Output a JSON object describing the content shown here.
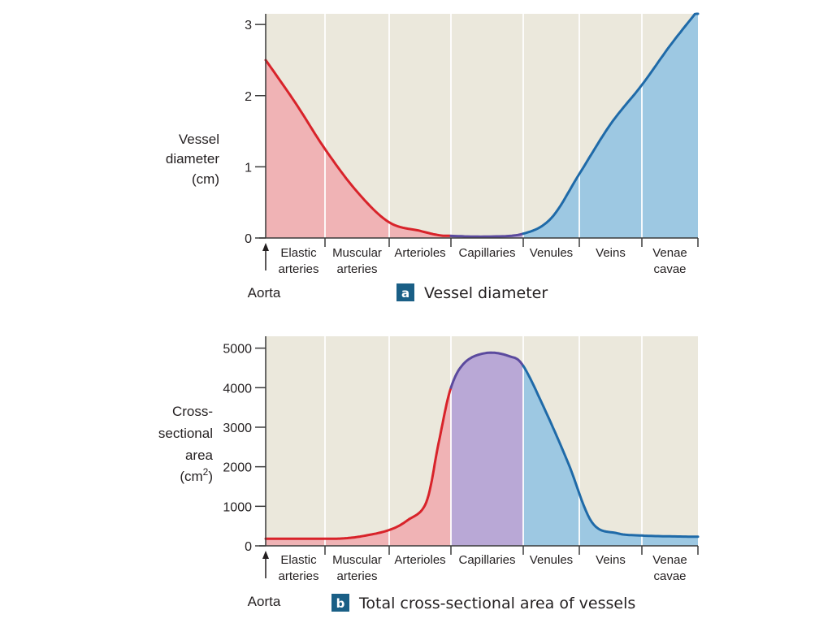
{
  "categories": [
    "Elastic arteries",
    "Muscular arteries",
    "Arterioles",
    "Capillaries",
    "Venules",
    "Veins",
    "Venae cavae"
  ],
  "category_lines": [
    [
      "Elastic",
      "arteries"
    ],
    [
      "Muscular",
      "arteries"
    ],
    [
      "Arterioles"
    ],
    [
      "Capillaries"
    ],
    [
      "Venules"
    ],
    [
      "Veins"
    ],
    [
      "Venae",
      "cavae"
    ]
  ],
  "aorta_label": "Aorta",
  "colors": {
    "background": "#ebe8dc",
    "artery_line": "#d8232a",
    "artery_fill": "#f0b3b5",
    "capillary_line": "#5b4a9e",
    "capillary_fill": "#b9a8d6",
    "vein_line": "#1f6aa8",
    "vein_fill": "#9dc8e2",
    "badge": "#1a5f86"
  },
  "chart_data": [
    {
      "type": "area",
      "panel": "a",
      "title": "Vessel diameter",
      "ylabel_lines": [
        "Vessel",
        "diameter",
        "(cm)"
      ],
      "ylim": [
        0,
        3.15
      ],
      "yticks": [
        0,
        1,
        2,
        3
      ],
      "xlim": [
        0,
        7
      ],
      "x": [
        0,
        0.5,
        1,
        1.5,
        2,
        2.5,
        2.8,
        3,
        3.5,
        4,
        4.5,
        5,
        5.5,
        6,
        6.5,
        7
      ],
      "y": [
        2.5,
        1.9,
        1.25,
        0.65,
        0.22,
        0.1,
        0.04,
        0.03,
        0.02,
        0.06,
        0.28,
        0.9,
        1.6,
        2.15,
        2.7,
        3.2
      ],
      "segments": [
        {
          "name": "arteries",
          "from": 0,
          "to": 3
        },
        {
          "name": "capillaries",
          "from": 3,
          "to": 4
        },
        {
          "name": "veins",
          "from": 4,
          "to": 7
        }
      ]
    },
    {
      "type": "area",
      "panel": "b",
      "title": "Total cross-sectional area of vessels",
      "ylabel_lines": [
        "Cross-",
        "sectional",
        "area",
        "(cm2)"
      ],
      "ylim": [
        0,
        5300
      ],
      "yticks": [
        0,
        1000,
        2000,
        3000,
        4000,
        5000
      ],
      "xlim": [
        0,
        7
      ],
      "x": [
        0,
        0.5,
        1,
        1.3,
        1.6,
        2,
        2.3,
        2.6,
        2.8,
        3,
        3.2,
        3.5,
        3.8,
        4,
        4.4,
        4.8,
        5.2,
        5.6,
        6,
        6.5,
        7
      ],
      "y": [
        180,
        180,
        180,
        190,
        250,
        400,
        650,
        1100,
        2600,
        4000,
        4650,
        4880,
        4800,
        4550,
        3400,
        2100,
        600,
        320,
        260,
        240,
        230
      ],
      "segments": [
        {
          "name": "arteries",
          "from": 0,
          "to": 3
        },
        {
          "name": "capillaries",
          "from": 3,
          "to": 4
        },
        {
          "name": "veins",
          "from": 4,
          "to": 7
        }
      ]
    }
  ]
}
